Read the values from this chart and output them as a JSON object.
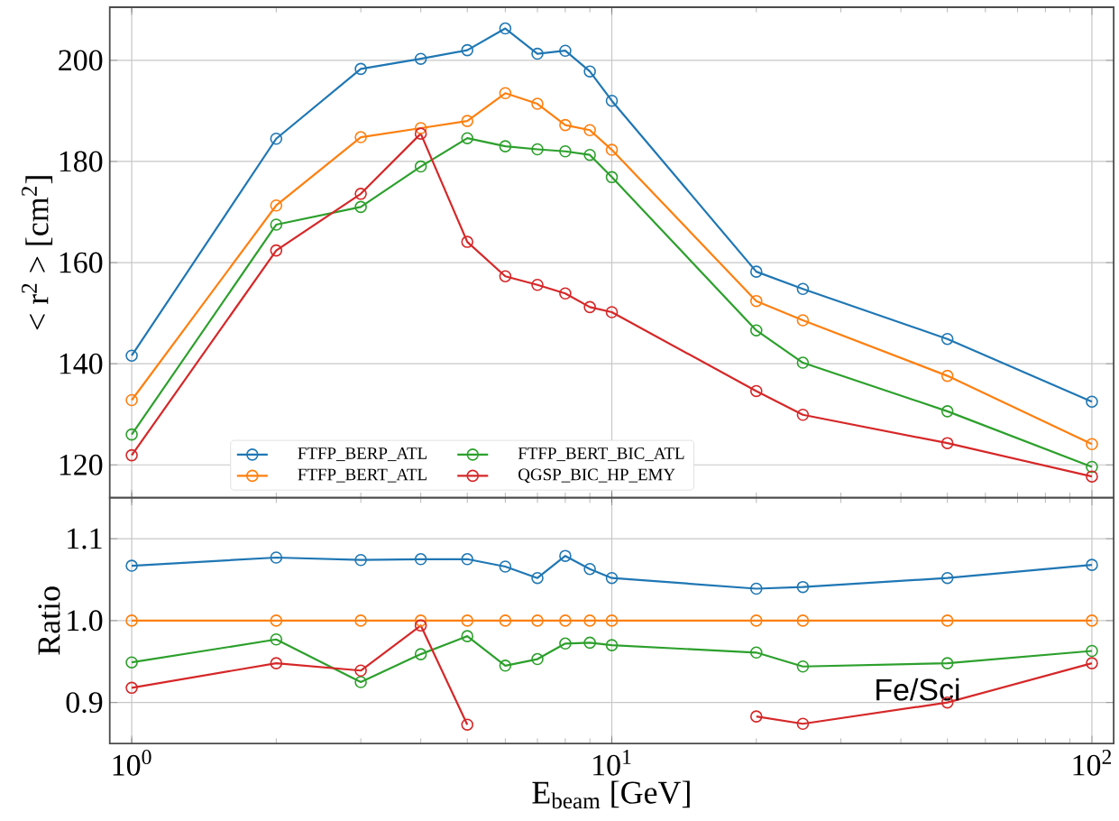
{
  "chart_data": [
    {
      "type": "line",
      "ylabel": "< r$^{2}$ > [cm$^{2}$]",
      "log": "x",
      "grid": true,
      "legend": "bottom",
      "marker": "circle",
      "line_style": "solid",
      "tick_labels": "y",
      "x": [
        1,
        2,
        3,
        4,
        5,
        6,
        7,
        8,
        9,
        10,
        20,
        25,
        50,
        100
      ],
      "xlim": [
        0.9,
        111
      ],
      "xticks": [
        {
          "value": 1,
          "label": null
        },
        {
          "value": 10,
          "label": null
        },
        {
          "value": 100,
          "label": null
        }
      ],
      "ylim": [
        113.5,
        210.5
      ],
      "yticks": [
        120,
        140,
        160,
        180,
        200
      ],
      "series": [
        {
          "name": "FTFP_BERP_ATL",
          "color": "#1f77b4",
          "values": [
            141.6,
            184.5,
            198.3,
            200.3,
            202,
            206.3,
            201.3,
            201.9,
            197.8,
            192,
            158.2,
            154.8,
            144.9,
            132.5
          ]
        },
        {
          "name": "FTFP_BERT_ATL",
          "color": "#ff7f0e",
          "values": [
            132.8,
            171.3,
            184.8,
            186.6,
            188,
            193.5,
            191.4,
            187.2,
            186.2,
            182.3,
            152.4,
            148.6,
            137.6,
            124.1
          ]
        },
        {
          "name": "FTFP_BERT_BIC_ATL",
          "color": "#2ca02c",
          "values": [
            126,
            167.5,
            171,
            179,
            184.6,
            183,
            182.4,
            182,
            181.3,
            176.9,
            146.6,
            140.2,
            130.6,
            119.6
          ]
        },
        {
          "name": "QGSP_BIC_HP_EMY",
          "color": "#d62728",
          "values": [
            121.9,
            162.4,
            173.6,
            185.5,
            164.1,
            157.3,
            155.6,
            153.9,
            151.2,
            150.2,
            134.6,
            129.9,
            124.3,
            117.7
          ]
        }
      ]
    },
    {
      "type": "line",
      "ylabel": "Ratio",
      "xlabel": "E$_{beam}$ [GeV]",
      "log": "x",
      "grid": true,
      "marker": "circle",
      "line_style": "solid",
      "annotations": [
        "Fe/Sci"
      ],
      "x": [
        1,
        2,
        3,
        4,
        5,
        6,
        7,
        8,
        9,
        10,
        20,
        25,
        50,
        100
      ],
      "xlim": [
        0.9,
        111
      ],
      "xticks": [
        {
          "value": 1,
          "label": "10$^{0}$"
        },
        {
          "value": 10,
          "label": "10$^{1}$"
        },
        {
          "value": 100,
          "label": "10$^{2}$"
        }
      ],
      "ylim": [
        0.85,
        1.15
      ],
      "yticks": [
        {
          "value": 0.9,
          "label": "0.9"
        },
        {
          "value": 1,
          "label": "1.0"
        },
        {
          "value": 1.1,
          "label": "1.1"
        }
      ],
      "series": [
        {
          "color": "#1f77b4",
          "values": [
            1.067,
            1.077,
            1.074,
            1.075,
            1.075,
            1.066,
            1.052,
            1.079,
            1.063,
            1.052,
            1.039,
            1.041,
            1.052,
            1.068
          ]
        },
        {
          "color": "#ff7f0e",
          "values": [
            1,
            1,
            1,
            1,
            1,
            1,
            1,
            1,
            1,
            1,
            1,
            1,
            1,
            1
          ]
        },
        {
          "color": "#2ca02c",
          "values": [
            0.949,
            0.977,
            0.925,
            0.959,
            0.981,
            0.945,
            0.953,
            0.972,
            0.973,
            0.97,
            0.961,
            0.944,
            0.948,
            0.963
          ]
        },
        {
          "color": "#d62728",
          "values": [
            0.918,
            0.948,
            0.939,
            0.994,
            0.873,
            null,
            null,
            null,
            null,
            null,
            0.883,
            0.874,
            0.9,
            0.948
          ]
        }
      ]
    }
  ]
}
